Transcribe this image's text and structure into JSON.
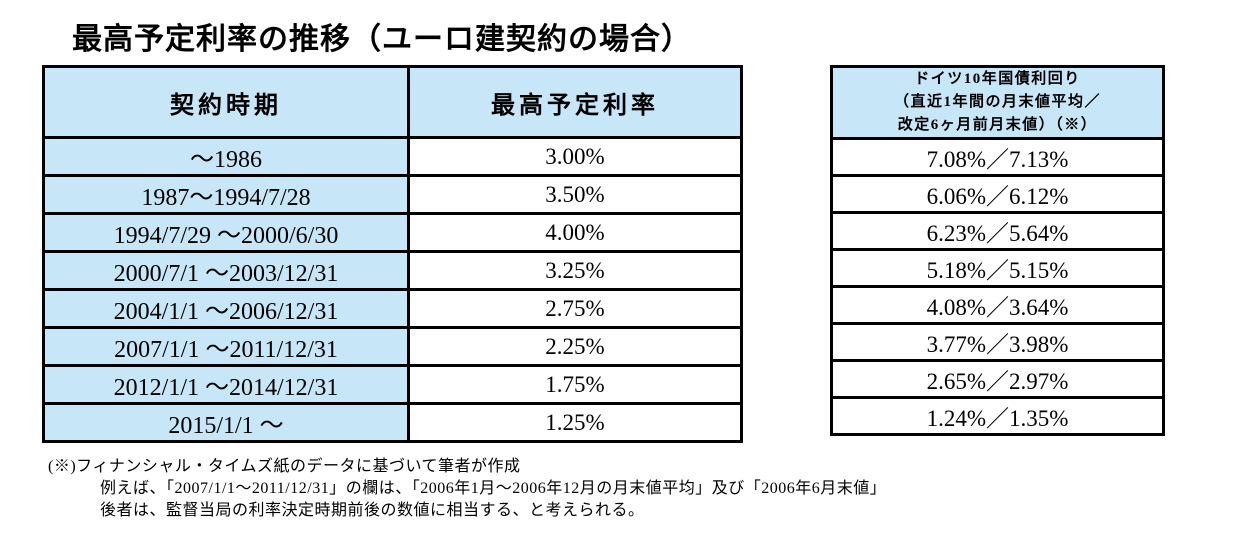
{
  "page": {
    "title": "最高予定利率の推移（ユーロ建契約の場合）"
  },
  "left_table": {
    "headers": [
      "契約時期",
      "最高予定利率"
    ],
    "rows": [
      {
        "period": "～1986",
        "rate": "3.00%"
      },
      {
        "period": "1987～1994/7/28",
        "rate": "3.50%"
      },
      {
        "period": "1994/7/29 ～2000/6/30",
        "rate": "4.00%"
      },
      {
        "period": "2000/7/1 ～2003/12/31",
        "rate": "3.25%"
      },
      {
        "period": "2004/1/1 ～2006/12/31",
        "rate": "2.75%"
      },
      {
        "period": "2007/1/1 ～2011/12/31",
        "rate": "2.25%"
      },
      {
        "period": "2012/1/1 ～2014/12/31",
        "rate": "1.75%"
      },
      {
        "period": "2015/1/1 ～",
        "rate": "1.25%"
      }
    ]
  },
  "right_table": {
    "header_lines": [
      "ドイツ10年国債利回り",
      "（直近1年間の月末値平均／",
      "改定6ヶ月前月末値）（※）"
    ],
    "rows": [
      "7.08%／7.13%",
      "6.06%／6.12%",
      "6.23%／5.64%",
      "5.18%／5.15%",
      "4.08%／3.64%",
      "3.77%／3.98%",
      "2.65%／2.97%",
      "1.24%／1.35%"
    ]
  },
  "footnote": {
    "line1": "(※)フィナンシャル・タイムズ紙のデータに基づいて筆者が作成",
    "line2": "例えば、「2007/1/1～2011/12/31」の欄は、「2006年1月～2006年12月の月末値平均」及び「2006年6月末値」",
    "line3": "後者は、監督当局の利率決定時期前後の数値に相当する、と考えられる。"
  },
  "colors": {
    "cell_blue": "#c7e6f8",
    "border_black": "#000000",
    "page_bg": "#ffffff",
    "text_color": "#000000"
  }
}
